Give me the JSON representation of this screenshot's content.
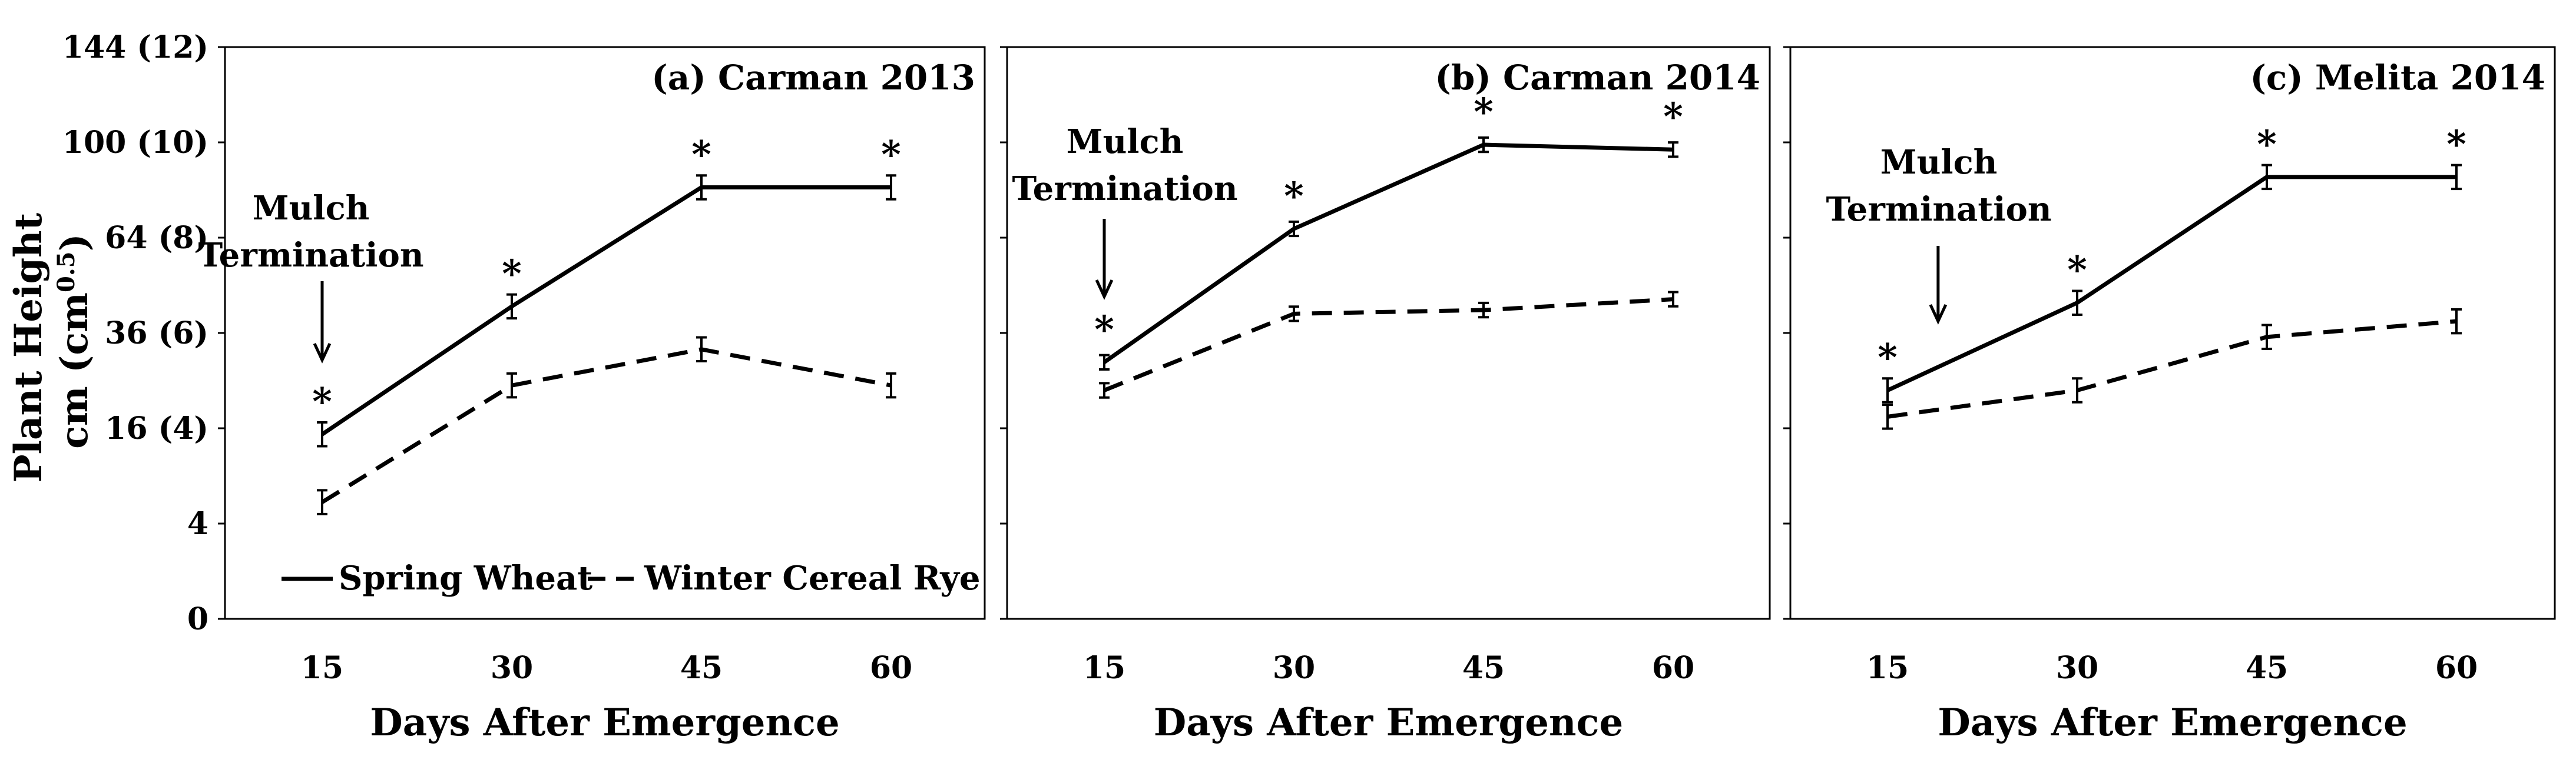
{
  "figure": {
    "ylabel_line1": "Plant Height",
    "ylabel_line2": "cm (cm",
    "ylabel_sup": "0.5",
    "ylabel_close": ")",
    "xlabel": "Days After Emergence",
    "legend": {
      "spring_wheat": "Spring Wheat",
      "winter_cereal_rye": "Winter Cereal Rye",
      "placement": "bottom-left of panel (a)"
    },
    "annotation_line1": "Mulch",
    "annotation_line2": "Termination",
    "significance_marker": "*"
  },
  "chart_data": [
    {
      "type": "line",
      "title": "(a) Carman 2013",
      "xlabel": "Days After Emergence",
      "ylabel": "Plant Height cm (cm0.5)",
      "scale": "square-root",
      "x": [
        15,
        30,
        45,
        60
      ],
      "x_tick_labels": [
        "15",
        "30",
        "45",
        "60"
      ],
      "ylim": [
        0,
        144
      ],
      "y_ticks": [
        0,
        4,
        16,
        36,
        64,
        100,
        144
      ],
      "y_tick_labels": [
        "0",
        "4",
        "16 (4)",
        "36 (6)",
        "64 (8)",
        "100 (10)",
        "144 (12)"
      ],
      "series": [
        {
          "name": "Spring Wheat",
          "style": "solid",
          "values": [
            15,
            43,
            82,
            82
          ],
          "error": [
            0.25,
            0.25,
            0.25,
            0.25
          ]
        },
        {
          "name": "Winter Cereal Rye",
          "style": "dashed",
          "values": [
            6,
            24,
            32,
            24
          ],
          "error": [
            0.25,
            0.25,
            0.25,
            0.25
          ]
        }
      ],
      "significant": [
        true,
        true,
        true,
        true
      ],
      "mulch_termination_day": 15
    },
    {
      "type": "line",
      "title": "(b) Carman 2014",
      "xlabel": "Days After Emergence",
      "scale": "square-root",
      "x": [
        15,
        30,
        45,
        60
      ],
      "x_tick_labels": [
        "15",
        "30",
        "45",
        "60"
      ],
      "ylim": [
        0,
        144
      ],
      "y_ticks": [
        0,
        4,
        16,
        36,
        64,
        100,
        144
      ],
      "series": [
        {
          "name": "Spring Wheat",
          "style": "solid",
          "values": [
            29,
            67,
            99,
            97
          ],
          "error": [
            0.15,
            0.15,
            0.15,
            0.15
          ]
        },
        {
          "name": "Winter Cereal Rye",
          "style": "dashed",
          "values": [
            23,
            41,
            42,
            45
          ],
          "error": [
            0.15,
            0.15,
            0.15,
            0.15
          ]
        }
      ],
      "significant": [
        true,
        true,
        true,
        true
      ],
      "mulch_termination_day": 15
    },
    {
      "type": "line",
      "title": "(c) Melita 2014",
      "xlabel": "Days After Emergence",
      "scale": "square-root",
      "x": [
        15,
        30,
        45,
        60
      ],
      "x_tick_labels": [
        "15",
        "30",
        "45",
        "60"
      ],
      "ylim": [
        0,
        144
      ],
      "y_ticks": [
        0,
        4,
        16,
        36,
        64,
        100,
        144
      ],
      "series": [
        {
          "name": "Spring Wheat",
          "style": "solid",
          "values": [
            23,
            44,
            86,
            86
          ],
          "error": [
            0.25,
            0.25,
            0.25,
            0.25
          ]
        },
        {
          "name": "Winter Cereal Rye",
          "style": "dashed",
          "values": [
            18,
            23,
            35,
            39
          ],
          "error": [
            0.25,
            0.25,
            0.25,
            0.25
          ]
        }
      ],
      "significant": [
        true,
        true,
        true,
        true
      ],
      "mulch_termination_day": 19
    }
  ]
}
